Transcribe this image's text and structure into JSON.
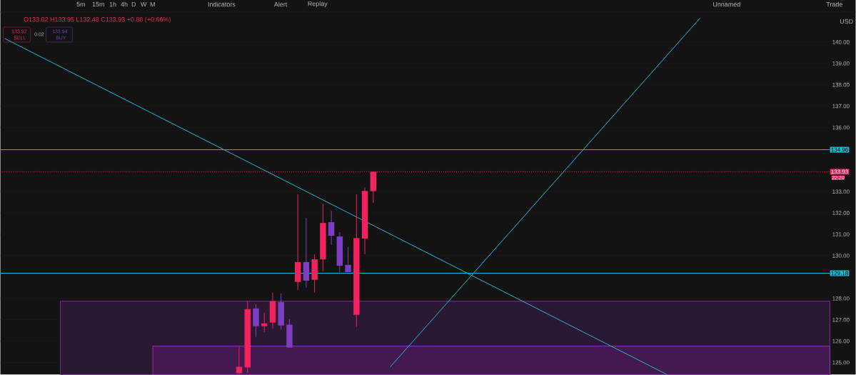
{
  "chart_data": {
    "type": "candlestick",
    "categories": [
      null,
      null,
      null,
      null,
      null,
      null,
      null,
      null,
      null,
      null,
      null,
      null,
      null,
      null,
      null,
      null,
      null,
      null,
      null,
      null,
      null,
      null,
      null,
      null,
      null,
      null,
      null,
      null,
      null,
      null,
      null,
      null,
      null,
      null,
      null,
      null,
      null,
      null,
      null,
      null,
      null,
      null,
      null,
      null,
      null,
      null,
      null,
      null,
      null,
      null,
      null,
      null,
      null,
      null,
      null,
      null,
      null,
      null,
      null,
      null,
      null,
      null,
      null,
      null,
      null,
      null,
      null,
      null,
      null,
      null,
      null,
      null,
      null,
      null,
      null,
      null,
      null,
      null,
      null,
      null,
      null,
      null,
      null,
      null,
      null,
      null,
      null,
      null,
      null,
      null,
      null,
      null,
      null,
      null,
      null,
      null,
      null,
      null,
      null
    ],
    "ohlc": [
      null,
      null,
      null,
      null,
      null,
      null,
      null,
      null,
      null,
      null,
      null,
      null,
      null,
      null,
      null,
      null,
      null,
      null,
      null,
      null,
      null,
      null,
      null,
      null,
      null,
      null,
      null,
      null,
      [
        124.5,
        125.77,
        124.45,
        124.8
      ],
      [
        124.77,
        127.87,
        124.5,
        127.5
      ],
      [
        127.53,
        127.73,
        126.2,
        126.7
      ],
      [
        126.7,
        127.33,
        126.43,
        126.83
      ],
      [
        126.87,
        128.27,
        126.6,
        127.87
      ],
      [
        127.83,
        128.23,
        126.53,
        126.73
      ],
      [
        126.77,
        127.03,
        125.7,
        125.7
      ],
      [
        128.77,
        132.87,
        128.4,
        129.7
      ],
      [
        129.7,
        131.77,
        128.5,
        128.83
      ],
      [
        128.87,
        130.07,
        128.27,
        129.83
      ],
      [
        129.83,
        132.43,
        129.27,
        131.53
      ],
      [
        131.57,
        132.1,
        130.5,
        130.93
      ],
      [
        130.9,
        131.1,
        129.23,
        129.53
      ],
      [
        129.57,
        130.4,
        129.23,
        129.23
      ],
      [
        127.23,
        132.87,
        126.67,
        130.83
      ],
      [
        130.8,
        133.2,
        130.07,
        133.03
      ],
      [
        133.02,
        133.95,
        132.48,
        133.93
      ],
      null,
      null,
      null,
      null,
      null,
      null,
      null,
      null,
      null,
      null,
      null,
      null,
      null,
      null,
      null,
      null,
      null,
      null,
      null,
      null,
      null,
      null,
      null,
      null,
      null,
      null,
      null,
      null,
      null,
      null,
      null,
      null,
      null,
      null,
      null,
      null,
      null,
      null,
      null,
      null,
      null,
      null,
      null,
      null,
      null,
      null,
      null,
      null,
      null,
      null,
      null,
      null,
      null,
      null
    ],
    "colors": [
      null,
      null,
      null,
      null,
      null,
      null,
      null,
      null,
      null,
      null,
      null,
      null,
      null,
      null,
      null,
      null,
      null,
      null,
      null,
      null,
      null,
      null,
      null,
      null,
      null,
      null,
      null,
      null,
      "#f2215f",
      "#f2215f",
      "#7b3fc4",
      "#f2215f",
      "#f2215f",
      "#7b3fc4",
      "#7b3fc4",
      "#f2215f",
      "#7b3fc4",
      "#f2215f",
      "#f2215f",
      "#7b3fc4",
      "#7b3fc4",
      "#7b3fc4",
      "#f2215f",
      "#f2215f",
      "#f2215f",
      null,
      null,
      null,
      null,
      null,
      null,
      null,
      null,
      null,
      null,
      null,
      null,
      null,
      null,
      null,
      null,
      null,
      null,
      null,
      null,
      null,
      null,
      null,
      null,
      null,
      null,
      null,
      null,
      null,
      null,
      null,
      null,
      null,
      null,
      null,
      null,
      null,
      null,
      null,
      null,
      null,
      null,
      null,
      null,
      null,
      null,
      null,
      null,
      null,
      null,
      null,
      null,
      null,
      null
    ],
    "ylim": [
      124.43,
      141.3
    ],
    "yticks": [
      {
        "value": 125,
        "label": "125.00"
      },
      {
        "value": 126,
        "label": "126.00"
      },
      {
        "value": 127,
        "label": "127.00"
      },
      {
        "value": 128,
        "label": "128.00"
      },
      {
        "value": 130,
        "label": "130.00"
      },
      {
        "value": 131,
        "label": "131.00"
      },
      {
        "value": 132,
        "label": "132.00"
      },
      {
        "value": 133,
        "label": "133.00"
      },
      {
        "value": 136,
        "label": "136.00"
      },
      {
        "value": 137,
        "label": "137.00"
      },
      {
        "value": 138,
        "label": "138.00"
      },
      {
        "value": 139,
        "label": "139.00"
      },
      {
        "value": 140,
        "label": "140.00"
      }
    ],
    "series": [
      {
        "type": "line",
        "color": "#22b8cf",
        "values": [
          140.17,
          null,
          null,
          null,
          null,
          null,
          null,
          null,
          null,
          null,
          null,
          null,
          null,
          null,
          null,
          null,
          null,
          null,
          null,
          null,
          null,
          null,
          null,
          null,
          null,
          null,
          null,
          null,
          null,
          null,
          null,
          null,
          null,
          null,
          null,
          null,
          null,
          null,
          null,
          null,
          null,
          null,
          null,
          null,
          null,
          null,
          null,
          null,
          null,
          null,
          null,
          null,
          null,
          null,
          null,
          null,
          null,
          null,
          null,
          null,
          null,
          null,
          null,
          null,
          null,
          null,
          null,
          null,
          null,
          null,
          null,
          null,
          null,
          null,
          null,
          null,
          null,
          null,
          null,
          124.45,
          null,
          null,
          null,
          null,
          null,
          null,
          null,
          null,
          null,
          null,
          null,
          null,
          null,
          null,
          null,
          null,
          null,
          null,
          null
        ]
      },
      {
        "type": "line",
        "color": "#22b8cf",
        "values": [
          null,
          null,
          null,
          null,
          null,
          null,
          null,
          null,
          null,
          null,
          null,
          null,
          null,
          null,
          null,
          null,
          null,
          null,
          null,
          null,
          null,
          null,
          null,
          null,
          null,
          null,
          null,
          null,
          null,
          null,
          null,
          null,
          null,
          null,
          null,
          null,
          null,
          null,
          null,
          null,
          null,
          null,
          null,
          null,
          null,
          null,
          124.78,
          null,
          null,
          null,
          null,
          null,
          null,
          null,
          null,
          null,
          null,
          null,
          null,
          null,
          null,
          null,
          null,
          null,
          null,
          null,
          null,
          null,
          null,
          null,
          null,
          null,
          null,
          null,
          null,
          null,
          null,
          null,
          null,
          null,
          null,
          null,
          null,
          141.12,
          null,
          null,
          null,
          null,
          null,
          null,
          null,
          null,
          null,
          null,
          null,
          null,
          null,
          null,
          null
        ]
      }
    ],
    "grid": "y",
    "bands": [
      {
        "axis": "y",
        "from": 124.43,
        "to": 127.87,
        "color": "#2b1833"
      },
      {
        "axis": "y",
        "from": 124.43,
        "to": 125.77,
        "color": "#44194f"
      }
    ],
    "ref_lines": [
      {
        "axis": "y",
        "value": 134.96,
        "label": "134.96",
        "color": "#22b8cf"
      },
      {
        "axis": "y",
        "value": 129.18,
        "label": "129.18",
        "color": "#22b8cf"
      },
      {
        "axis": "y",
        "value": 133.93,
        "label": "133.93",
        "color": "#f2215f",
        "line_style": "dotted"
      }
    ],
    "annotations": [
      "5m",
      "15m",
      "1h",
      "4h",
      "D",
      "W",
      "M",
      "Indicators",
      "Alert",
      "Replay",
      "Unnamed",
      "Trade",
      "USD",
      "O133.02 H133.95 L132.48 C133.93 +0.88 (+0.66%)",
      "133.92",
      "SELL",
      "0.02",
      "133.94",
      "BUY",
      "22:20"
    ]
  }
}
